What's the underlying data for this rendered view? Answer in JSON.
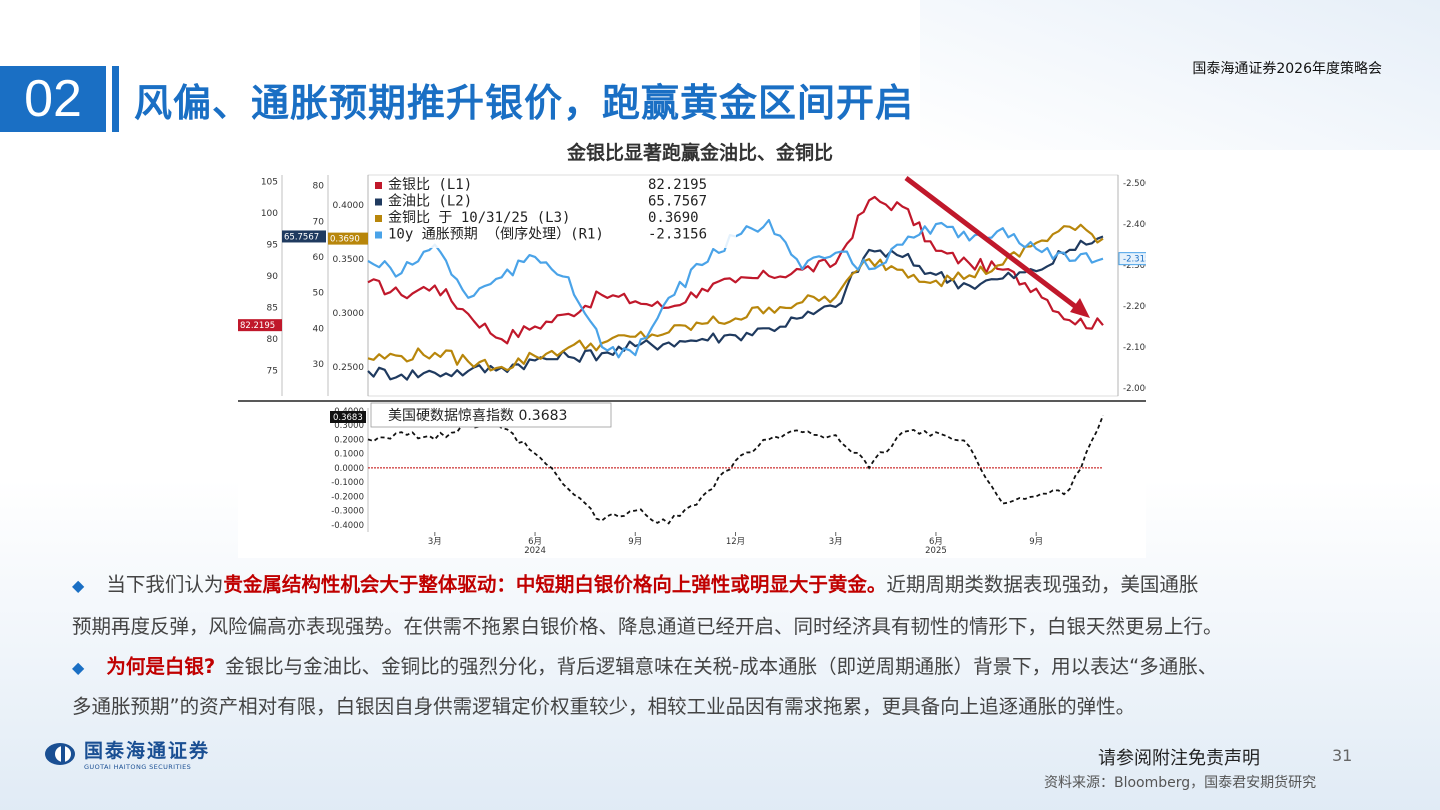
{
  "header": {
    "top_right": "国泰海通证券2026年度策略会",
    "section_number": "02",
    "title": "风偏、通胀预期推升银价，跑赢黄金区间开启"
  },
  "chart_title": "金银比显著跑赢金油比、金铜比",
  "colors": {
    "accent": "#1a6fc4",
    "gold_silver": "#c0182b",
    "gold_oil": "#1f3a5f",
    "gold_copper": "#b8860b",
    "inflation": "#4aa3e8",
    "highlight_red": "#c00000"
  },
  "chart_data": [
    {
      "type": "line",
      "x_ticks": [
        "3月",
        "6月",
        "9月",
        "12月",
        "3月",
        "6月",
        "9月"
      ],
      "year_labels": [
        "2024",
        "2025"
      ],
      "x": [
        "2024-01",
        "2024-02",
        "2024-03",
        "2024-04",
        "2024-05",
        "2024-06",
        "2024-07",
        "2024-08",
        "2024-09",
        "2024-10",
        "2024-11",
        "2024-12",
        "2025-01",
        "2025-02",
        "2025-03",
        "2025-04",
        "2025-05",
        "2025-06",
        "2025-07",
        "2025-08",
        "2025-09",
        "2025-10",
        "2025-11"
      ],
      "axes": {
        "L1": {
          "ticks": [
            "105",
            "100",
            "95",
            "90",
            "85",
            "80",
            "75"
          ],
          "ylim": [
            71,
            106
          ]
        },
        "L2": {
          "ticks": [
            "80",
            "70",
            "60",
            "50",
            "40",
            "30"
          ],
          "ylim": [
            21,
            83
          ]
        },
        "L3": {
          "ticks": [
            "0.4000",
            "0.3500",
            "0.3000",
            "0.2500"
          ],
          "ylim": [
            0.223,
            0.428
          ]
        },
        "R1": {
          "ticks": [
            "-2.0000",
            "-2.1000",
            "-2.2000",
            "-2.3000",
            "-2.4000",
            "-2.5000"
          ],
          "ylim": [
            -2.52,
            -1.98
          ],
          "inverted": true
        }
      },
      "series": [
        {
          "name": "金银比 (L1)",
          "axis": "L1",
          "last": "82.2195",
          "color_key": "gold_silver",
          "values": [
            89,
            87,
            88.5,
            84,
            80,
            82,
            84,
            87,
            86,
            85,
            88,
            89,
            90,
            91,
            92,
            102,
            101,
            94,
            92,
            91,
            88,
            83,
            82.2195
          ]
        },
        {
          "name": "金油比 (L2)",
          "axis": "L2",
          "last": "65.7567",
          "color_key": "gold_oil",
          "values": [
            28,
            27,
            27.5,
            28,
            29,
            31,
            32,
            33,
            35,
            36,
            37,
            38,
            40,
            43,
            46,
            62,
            60,
            55,
            52,
            54,
            56,
            62,
            65.7567
          ]
        },
        {
          "name": "金铜比 于 10/31/25 (L3)",
          "axis": "L3",
          "last": "0.3690",
          "color_key": "gold_copper",
          "values": [
            0.258,
            0.26,
            0.263,
            0.255,
            0.25,
            0.26,
            0.268,
            0.272,
            0.278,
            0.282,
            0.29,
            0.295,
            0.305,
            0.31,
            0.315,
            0.35,
            0.34,
            0.33,
            0.335,
            0.345,
            0.365,
            0.38,
            0.369
          ]
        },
        {
          "name": "10y 通胀预期 （倒序处理）(R1)",
          "axis": "R1",
          "last": "-2.3156",
          "color_key": "inflation",
          "values": [
            -2.31,
            -2.28,
            -2.35,
            -2.22,
            -2.27,
            -2.32,
            -2.27,
            -2.1,
            -2.08,
            -2.22,
            -2.3,
            -2.37,
            -2.41,
            -2.29,
            -2.33,
            -2.29,
            -2.35,
            -2.4,
            -2.36,
            -2.39,
            -2.34,
            -2.31,
            -2.3156
          ]
        }
      ]
    },
    {
      "type": "line",
      "x_ticks": [
        "3月",
        "6月",
        "9月",
        "12月",
        "3月",
        "6月",
        "9月"
      ],
      "year_labels": [
        "2024",
        "2025"
      ],
      "y_ticks": [
        "0.4000",
        "0.3000",
        "0.2000",
        "0.1000",
        "0.0000",
        "-0.1000",
        "-0.2000",
        "-0.3000",
        "-0.4000"
      ],
      "ylim": [
        -0.45,
        0.42
      ],
      "series": [
        {
          "name": "美国硬数据惊喜指数",
          "last": "0.3683",
          "x": [
            "2024-01",
            "2024-02",
            "2024-03",
            "2024-04",
            "2024-05",
            "2024-06",
            "2024-07",
            "2024-08",
            "2024-09",
            "2024-10",
            "2024-11",
            "2024-12",
            "2025-01",
            "2025-02",
            "2025-03",
            "2025-04",
            "2025-05",
            "2025-06",
            "2025-07",
            "2025-08",
            "2025-09",
            "2025-10",
            "2025-11"
          ],
          "values": [
            0.2,
            0.25,
            0.2,
            0.3,
            0.28,
            0.1,
            -0.15,
            -0.37,
            -0.3,
            -0.39,
            -0.2,
            0.05,
            0.2,
            0.25,
            0.23,
            0.0,
            0.25,
            0.25,
            0.15,
            -0.25,
            -0.2,
            -0.15,
            0.3683
          ]
        }
      ],
      "reference_line": 0.0
    }
  ],
  "body": {
    "p1_prefix": "当下我们认为",
    "p1_bold": "贵金属结构性机会大于整体驱动：中短期白银价格向上弹性或明显大于黄金。",
    "p1_line1_rest": "近期周期类数据表现强劲，美国通胀",
    "p1_line2": "预期再度反弹，风险偏高亦表现强势。在供需不拖累白银价格、降息通道已经开启、同时经济具有韧性的情形下，白银天然更易上行。",
    "p2_bold": "为何是白银?",
    "p2_line1_rest": "金银比与金油比、金铜比的强烈分化，背后逻辑意味在关税-成本通胀（即逆周期通胀）背景下，用以表达“多通胀、",
    "p2_line2": "多通胀预期”的资产相对有限，白银因自身供需逻辑定价权重较少，相较工业品因有需求拖累，更具备向上追逐通胀的弹性。"
  },
  "footer": {
    "logo_cn": "国泰海通证券",
    "logo_en": "GUOTAI HAITONG SECURITIES",
    "disclaimer": "请参阅附注免责声明",
    "page_number": "31",
    "source": "资料来源：Bloomberg，国泰君安期货研究"
  }
}
